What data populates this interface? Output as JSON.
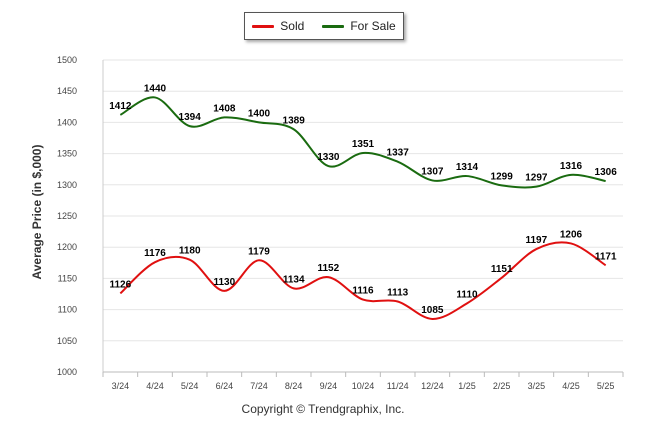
{
  "chart_data": {
    "type": "line",
    "categories": [
      "3/24",
      "4/24",
      "5/24",
      "6/24",
      "7/24",
      "8/24",
      "9/24",
      "10/24",
      "11/24",
      "12/24",
      "1/25",
      "2/25",
      "3/25",
      "4/25",
      "5/25"
    ],
    "series": [
      {
        "name": "Sold",
        "color": "#e01010",
        "values": [
          1126,
          1176,
          1180,
          1130,
          1179,
          1134,
          1152,
          1116,
          1113,
          1085,
          1110,
          1151,
          1197,
          1206,
          1171
        ]
      },
      {
        "name": "For Sale",
        "color": "#1a6b10",
        "values": [
          1412,
          1440,
          1394,
          1408,
          1400,
          1389,
          1330,
          1351,
          1337,
          1307,
          1314,
          1299,
          1297,
          1316,
          1306
        ]
      }
    ],
    "title": "",
    "xlabel": "",
    "ylabel": "Average Price (in $,000)",
    "ylim": [
      1000,
      1500
    ],
    "yticks": [
      1000,
      1050,
      1100,
      1150,
      1200,
      1250,
      1300,
      1350,
      1400,
      1450,
      1500
    ],
    "grid": true,
    "legend": "top-center"
  },
  "footer": {
    "copyright": "Copyright © Trendgraphix, Inc."
  }
}
